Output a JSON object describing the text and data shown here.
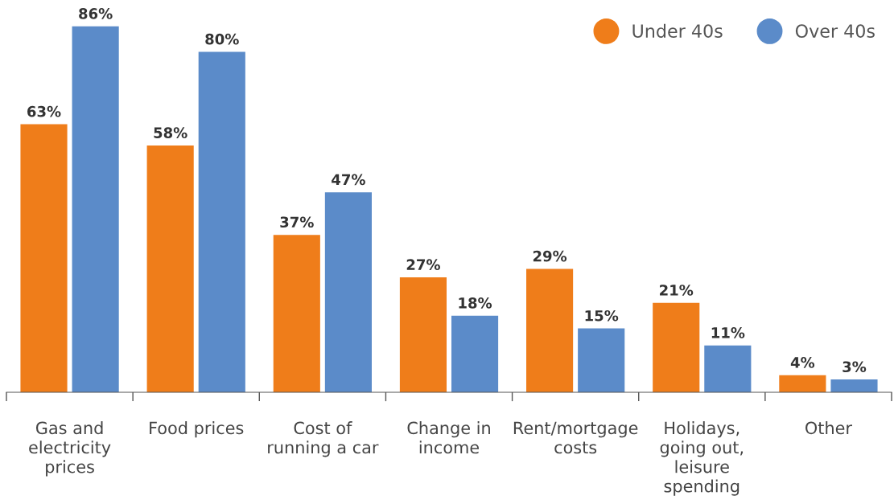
{
  "chart_data": {
    "type": "bar",
    "categories": [
      "Gas and\nelectricity\nprices",
      "Food prices",
      "Cost of\nrunning a car",
      "Change in\nincome",
      "Rent/mortgage\ncosts",
      "Holidays,\ngoing out,\nleisure\nspending",
      "Other"
    ],
    "series": [
      {
        "name": "Under 40s",
        "color": "#ef7d1a",
        "values": [
          63,
          58,
          37,
          27,
          29,
          21,
          4
        ],
        "value_labels": [
          "63%",
          "58%",
          "37%",
          "27%",
          "29%",
          "21%",
          "4%"
        ]
      },
      {
        "name": "Over 40s",
        "color": "#5b8bc9",
        "values": [
          86,
          80,
          47,
          18,
          15,
          11,
          3
        ],
        "value_labels": [
          "86%",
          "80%",
          "47%",
          "18%",
          "15%",
          "11%",
          "3%"
        ]
      }
    ],
    "legend": "top right",
    "grid": false
  }
}
